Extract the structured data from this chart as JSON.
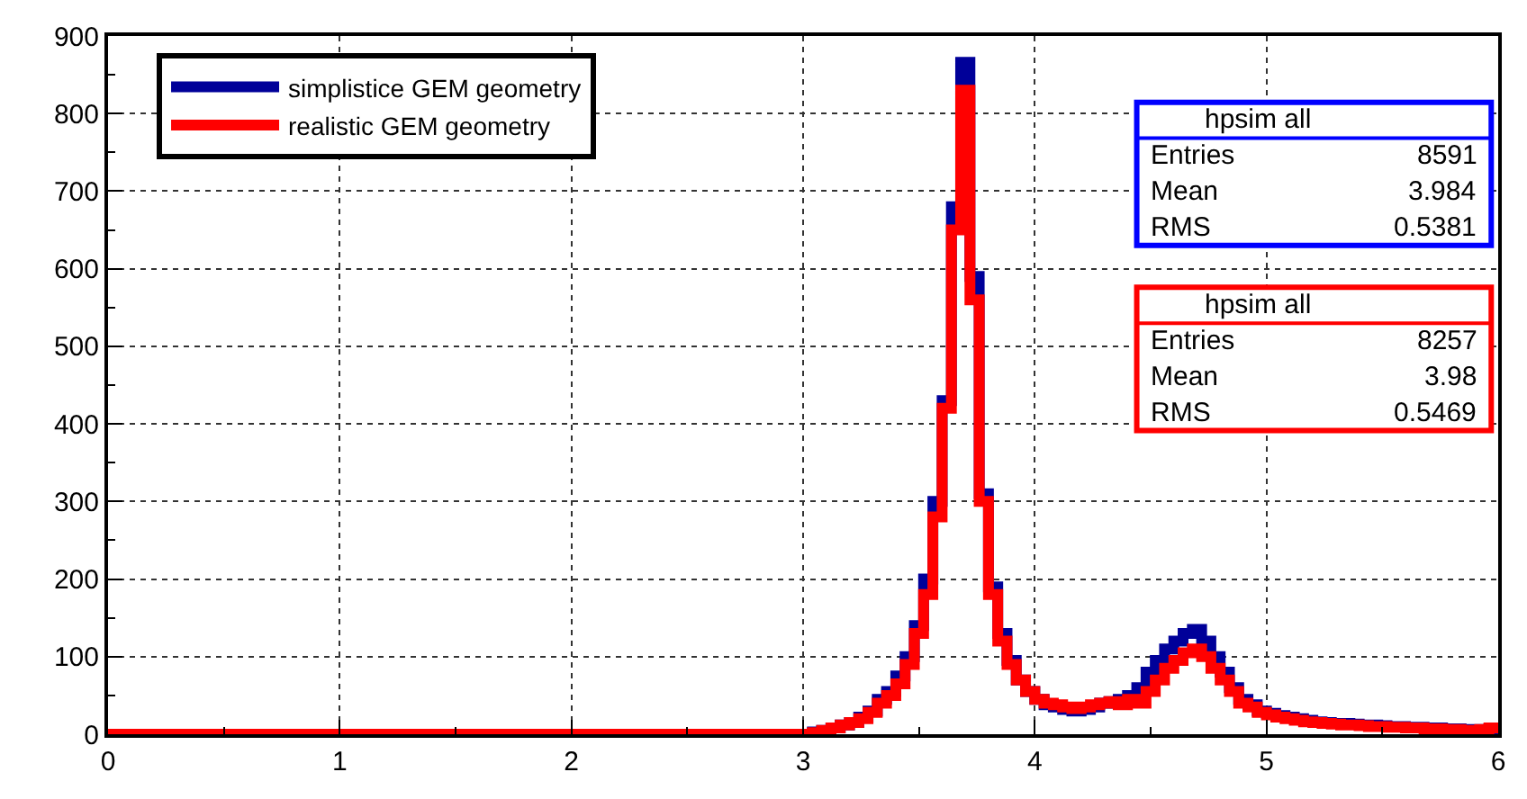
{
  "chart_data": {
    "type": "histogram",
    "bins": [
      0,
      3.0,
      3.04,
      3.08,
      3.12,
      3.16,
      3.2,
      3.24,
      3.28,
      3.32,
      3.36,
      3.4,
      3.44,
      3.48,
      3.52,
      3.56,
      3.6,
      3.64,
      3.68,
      3.72,
      3.76,
      3.8,
      3.84,
      3.88,
      3.92,
      3.96,
      4.0,
      4.04,
      4.08,
      4.12,
      4.16,
      4.2,
      4.24,
      4.28,
      4.32,
      4.36,
      4.4,
      4.44,
      4.48,
      4.52,
      4.56,
      4.6,
      4.64,
      4.68,
      4.72,
      4.76,
      4.8,
      4.84,
      4.88,
      4.92,
      4.96,
      5.0,
      5.04,
      5.08,
      5.12,
      5.16,
      5.2,
      5.24,
      5.28,
      5.32,
      5.36,
      5.4,
      5.44,
      5.48,
      5.52,
      5.56,
      5.6,
      5.64,
      5.68,
      5.72,
      5.76,
      5.8,
      5.84,
      5.88,
      5.92,
      5.96,
      6.0
    ],
    "series": [
      {
        "name": "simplistice GEM geometry",
        "color": "#000099",
        "values": [
          0,
          0,
          3,
          5,
          8,
          12,
          15,
          22,
          30,
          45,
          55,
          75,
          100,
          140,
          200,
          300,
          430,
          680,
          866,
          590,
          310,
          190,
          130,
          95,
          70,
          55,
          45,
          38,
          35,
          32,
          30,
          32,
          35,
          40,
          42,
          45,
          50,
          60,
          80,
          95,
          110,
          120,
          130,
          135,
          120,
          100,
          80,
          60,
          45,
          38,
          30,
          27,
          24,
          22,
          20,
          18,
          16,
          15,
          14,
          14,
          13,
          12,
          12,
          11,
          10,
          10,
          9,
          9,
          8,
          8,
          7,
          7,
          6,
          6,
          6,
          7
        ]
      },
      {
        "name": "realistic GEM geometry",
        "color": "#ff0000",
        "values": [
          0,
          0,
          2,
          5,
          8,
          12,
          15,
          20,
          28,
          40,
          50,
          65,
          90,
          130,
          180,
          280,
          420,
          650,
          830,
          560,
          300,
          180,
          120,
          90,
          70,
          55,
          45,
          40,
          38,
          35,
          33,
          35,
          38,
          40,
          42,
          38,
          45,
          40,
          55,
          70,
          85,
          95,
          105,
          110,
          100,
          85,
          70,
          55,
          40,
          35,
          28,
          25,
          22,
          20,
          18,
          16,
          15,
          14,
          13,
          12,
          12,
          11,
          10,
          10,
          9,
          9,
          8,
          8,
          7,
          7,
          6,
          6,
          5,
          5,
          6,
          8
        ]
      }
    ],
    "xlim": [
      0,
      6.0
    ],
    "xticks": [
      0,
      1,
      2,
      3,
      4,
      5,
      6
    ],
    "ylim": [
      0,
      900
    ],
    "yticks": [
      0,
      100,
      200,
      300,
      400,
      500,
      600,
      700,
      800,
      900
    ],
    "grid": true,
    "legend": "top left",
    "annotations": [
      "hpsim all",
      "Entries 8591",
      "Mean 3.984",
      "RMS 0.5381",
      "hpsim all",
      "Entries 8257",
      "Mean 3.98",
      "RMS 0.5469"
    ]
  }
}
